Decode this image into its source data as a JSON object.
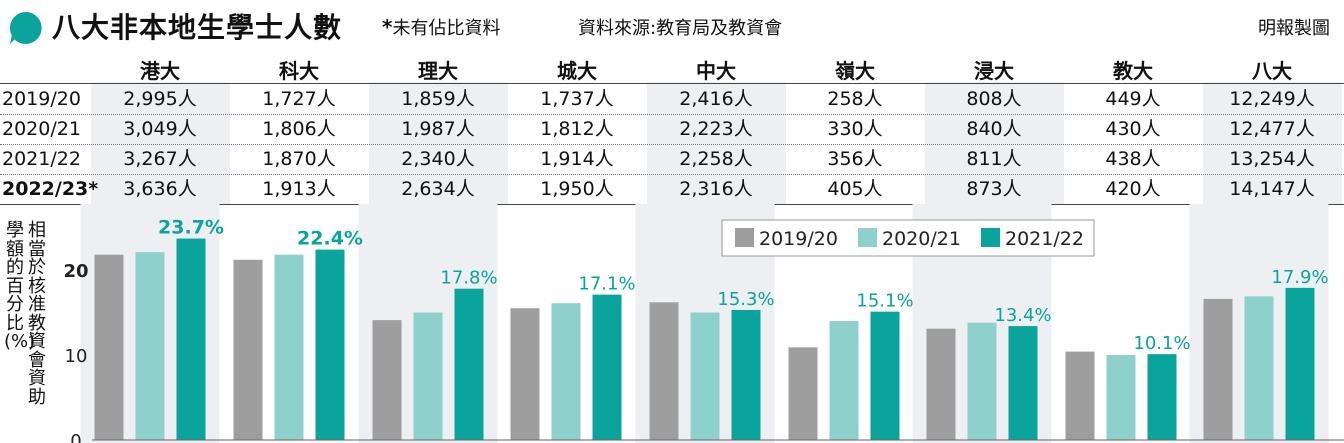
{
  "header": {
    "title": "八大非本地生學士人數",
    "note_star": "*",
    "note_text": "未有佔比資料",
    "source": "資料來源:教育局及教資會",
    "credit": "明報製圖"
  },
  "table": {
    "columns": [
      "港大",
      "科大",
      "理大",
      "城大",
      "中大",
      "嶺大",
      "浸大",
      "教大",
      "八大"
    ],
    "rows": [
      {
        "label": "2019/20",
        "values": [
          "2,995人",
          "1,727人",
          "1,859人",
          "1,737人",
          "2,416人",
          "258人",
          "808人",
          "449人",
          "12,249人"
        ]
      },
      {
        "label": "2020/21",
        "values": [
          "3,049人",
          "1,806人",
          "1,987人",
          "1,812人",
          "2,223人",
          "330人",
          "840人",
          "430人",
          "12,477人"
        ]
      },
      {
        "label": "2021/22",
        "values": [
          "3,267人",
          "1,870人",
          "2,340人",
          "1,914人",
          "2,258人",
          "356人",
          "811人",
          "438人",
          "13,254人"
        ]
      },
      {
        "label": "2022/23*",
        "values": [
          "3,636人",
          "1,913人",
          "2,634人",
          "1,950人",
          "2,316人",
          "405人",
          "873人",
          "420人",
          "14,147人"
        ]
      }
    ]
  },
  "chart_data": {
    "type": "bar",
    "categories": [
      "港大",
      "科大",
      "理大",
      "城大",
      "中大",
      "嶺大",
      "浸大",
      "教大",
      "八大"
    ],
    "series": [
      {
        "name": "2019/20",
        "color": "#9e9e9e",
        "values": [
          21.8,
          21.2,
          14.1,
          15.5,
          16.2,
          10.9,
          13.1,
          10.4,
          16.6
        ]
      },
      {
        "name": "2020/21",
        "color": "#8ed0cc",
        "values": [
          22.1,
          21.8,
          15.0,
          16.1,
          15.0,
          14.0,
          13.8,
          10.0,
          16.9
        ]
      },
      {
        "name": "2021/22",
        "color": "#0aa49d",
        "values": [
          23.7,
          22.4,
          17.8,
          17.1,
          15.3,
          15.1,
          13.4,
          10.1,
          17.9
        ]
      }
    ],
    "data_labels": [
      "23.7%",
      "22.4%",
      "17.8%",
      "17.1%",
      "15.3%",
      "15.1%",
      "13.4%",
      "10.1%",
      "17.9%"
    ],
    "ylabel_lines": [
      "相當於核准教資會資助",
      "學額的百分比(%)"
    ],
    "ylim": [
      0,
      25
    ],
    "yticks": [
      0,
      10,
      20
    ],
    "legend_position": "top-right",
    "grid": false
  }
}
